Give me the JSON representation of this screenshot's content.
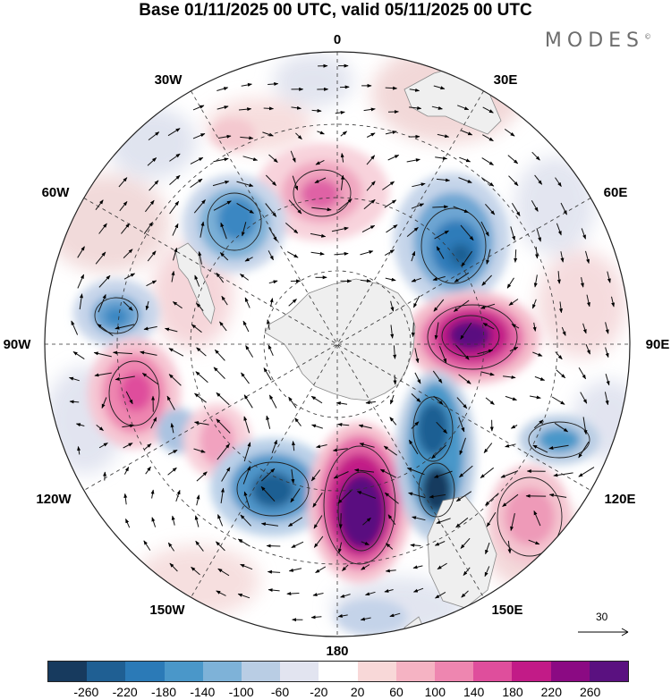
{
  "title": "Base 01/11/2025 00 UTC, valid 05/11/2025 00 UTC",
  "brand": "MODES",
  "brand_mark": "©",
  "longitude_labels": {
    "n0": "0",
    "n30e": "30E",
    "n60e": "60E",
    "n90e": "90E",
    "n120e": "120E",
    "n150e": "150E",
    "n180": "180",
    "n150w": "150W",
    "n120w": "120W",
    "n90w": "90W",
    "n60w": "60W",
    "n30w": "30W"
  },
  "reference_vector": "30",
  "colorbar": {
    "ticks": [
      "-260",
      "-220",
      "-180",
      "-140",
      "-100",
      "-60",
      "-20",
      "20",
      "60",
      "100",
      "140",
      "180",
      "220",
      "260"
    ],
    "colors": [
      "#173a5e",
      "#1f5f93",
      "#2b7ab7",
      "#4a97c9",
      "#7eb2d8",
      "#b9cde4",
      "#e2e4f0",
      "#ffffff",
      "#f8d8d8",
      "#f5b3c3",
      "#ee86b0",
      "#df4e9c",
      "#c21b87",
      "#8b0a83",
      "#5a1180"
    ]
  },
  "anomaly_centers": [
    {
      "sign": "positive",
      "strength": 2,
      "region": "near 0 longitude"
    },
    {
      "sign": "negative",
      "strength": 3,
      "region": "40W"
    },
    {
      "sign": "negative",
      "strength": 3,
      "region": "55E"
    },
    {
      "sign": "positive",
      "strength": 5,
      "region": "90E"
    },
    {
      "sign": "negative",
      "strength": 2,
      "region": "85W"
    },
    {
      "sign": "positive",
      "strength": 3,
      "region": "100W"
    },
    {
      "sign": "positive",
      "strength": 2,
      "region": "125W"
    },
    {
      "sign": "negative",
      "strength": 3,
      "region": "150W"
    },
    {
      "sign": "positive",
      "strength": 6,
      "region": "170E"
    },
    {
      "sign": "negative",
      "strength": 4,
      "region": "145E"
    },
    {
      "sign": "negative",
      "strength": 3,
      "region": "112E"
    },
    {
      "sign": "positive",
      "strength": 2,
      "region": "130E"
    }
  ],
  "colors": {
    "land": "#efefef",
    "coast": "#8a8a8a",
    "grid": "#333333",
    "contour": "#222222"
  }
}
